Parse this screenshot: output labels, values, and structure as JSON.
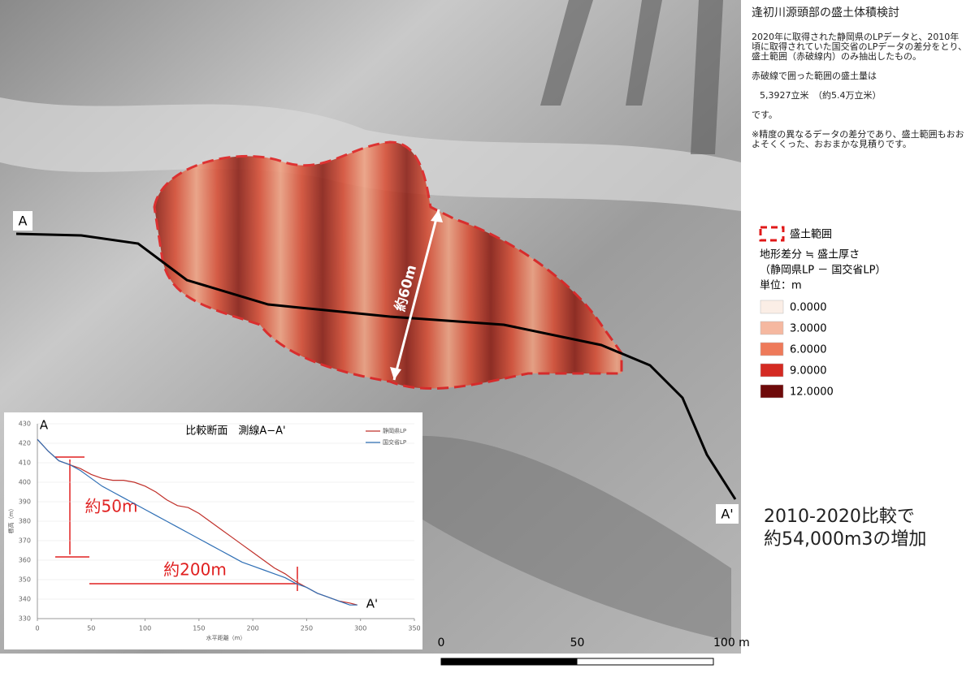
{
  "title": "逢初川源頭部の盛土体積検討",
  "description": [
    "2020年に取得された静岡県のLPデータと、2010年頃に取得されていた国交省のLPデータの差分をとり、盛土範囲（赤破線内）のみ抽出したもの。",
    "赤破線で囲った範囲の盛土量は",
    "5,3927立米　（約5.4万立米）",
    "です。",
    "※精度の異なるデータの差分であり、盛土範囲もおおよそくくった、おおまかな見積りです。"
  ],
  "legend": {
    "extent_label": "盛土範囲",
    "heading": [
      "地形差分 ≒ 盛土厚さ",
      "（静岡県LP － 国交省LP）",
      "単位：m"
    ],
    "classes": [
      {
        "label": "0.0000",
        "color": "#fbeee6"
      },
      {
        "label": "3.0000",
        "color": "#f5b8a0"
      },
      {
        "label": "6.0000",
        "color": "#ee7a5a"
      },
      {
        "label": "9.0000",
        "color": "#d42a22"
      },
      {
        "label": "12.0000",
        "color": "#6e0a0a"
      }
    ]
  },
  "map": {
    "label_a": "A",
    "label_a_prime": "A'",
    "width_label": "約60m",
    "scale_bar": [
      {
        "value": 0,
        "label": "0"
      },
      50,
      {
        "value": 100,
        "label": "100 m"
      }
    ],
    "callout": [
      "2010-2020比較で",
      "約54,000m3の増加"
    ]
  },
  "chart_data": {
    "type": "line",
    "title": "比較断面　測線A−A'",
    "xlabel": "水平距離（m）",
    "ylabel": "標高（m）",
    "xlim": [
      0,
      350
    ],
    "xticks": [
      0,
      50,
      100,
      150,
      200,
      250,
      300,
      350
    ],
    "ylim": [
      330,
      430
    ],
    "yticks": [
      330,
      340,
      350,
      360,
      370,
      380,
      390,
      400,
      410,
      420,
      430
    ],
    "x": [
      0,
      10,
      20,
      30,
      40,
      50,
      60,
      70,
      80,
      90,
      100,
      110,
      120,
      130,
      140,
      150,
      160,
      170,
      180,
      190,
      200,
      210,
      220,
      230,
      240,
      250,
      260,
      270,
      280,
      290,
      297
    ],
    "series": [
      {
        "name": "静岡県LP",
        "color": "#c0302a",
        "values": [
          422,
          416,
          411,
          409,
          407,
          404,
          402,
          401,
          401,
          400,
          398,
          395,
          391,
          388,
          387,
          384,
          380,
          376,
          372,
          368,
          364,
          360,
          356,
          353,
          349,
          346,
          343,
          341,
          339,
          338,
          337
        ]
      },
      {
        "name": "国交省LP",
        "color": "#2f6fb5",
        "values": [
          422,
          416,
          411,
          409,
          406,
          402,
          398,
          395,
          392,
          389,
          386,
          383,
          380,
          377,
          374,
          371,
          368,
          365,
          362,
          359,
          357,
          355,
          353,
          351,
          348,
          346,
          343,
          341,
          339,
          337,
          337
        ]
      }
    ],
    "annotations": [
      "A",
      "A'",
      "約50m",
      "約200m"
    ]
  }
}
